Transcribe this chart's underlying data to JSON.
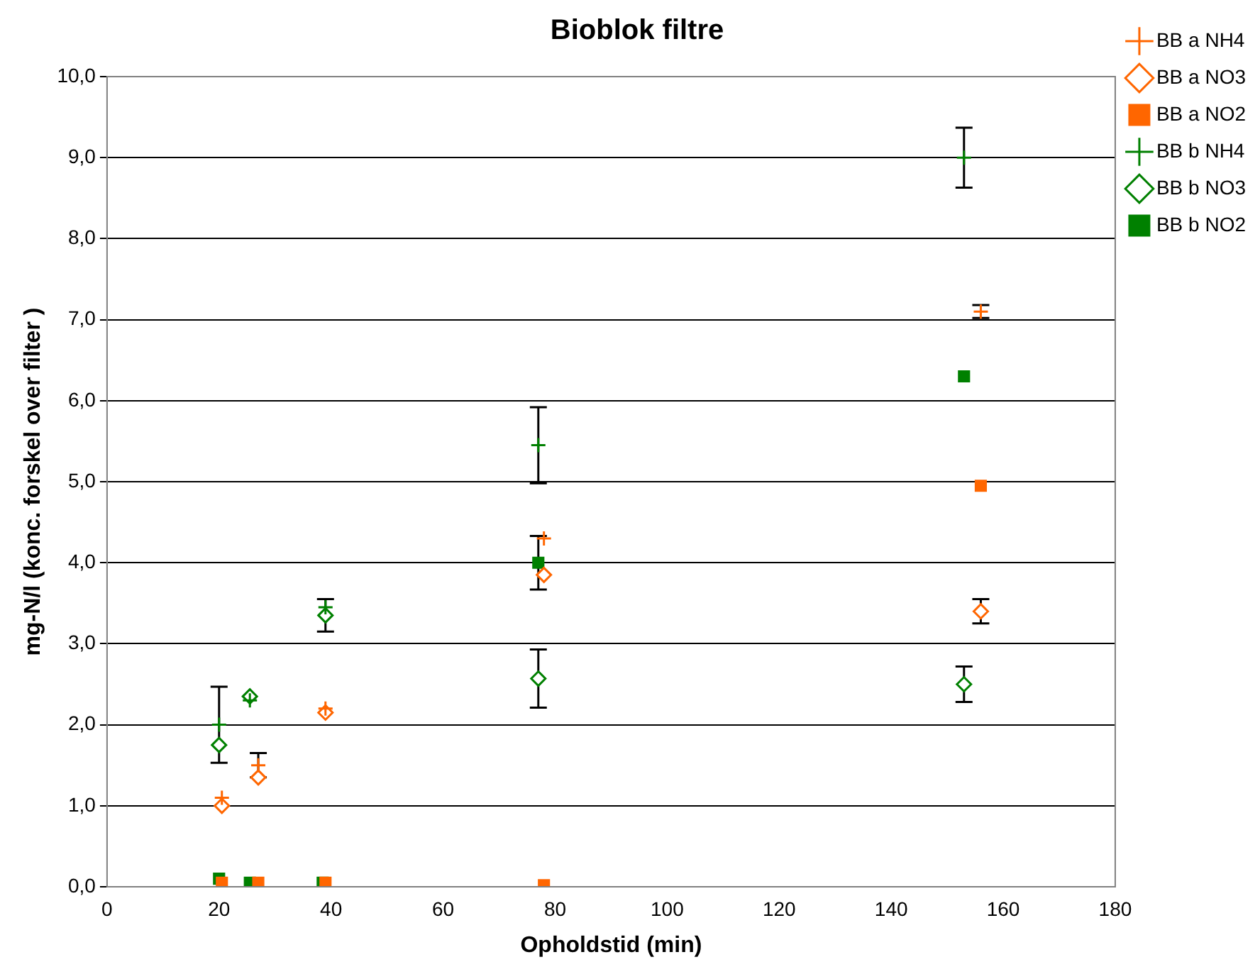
{
  "chart_data": {
    "type": "scatter",
    "title": "Bioblok filtre",
    "xlabel": "Opholdstid (min)",
    "ylabel": "mg-N/l (konc. forskel over filter )",
    "xlim": [
      0,
      180
    ],
    "xticks": [
      0,
      20,
      40,
      60,
      80,
      100,
      120,
      140,
      160,
      180
    ],
    "ylim": [
      0,
      10
    ],
    "yticks": [
      {
        "value": 0,
        "label": "0,0"
      },
      {
        "value": 1,
        "label": "1,0"
      },
      {
        "value": 2,
        "label": "2,0"
      },
      {
        "value": 3,
        "label": "3,0"
      },
      {
        "value": 4,
        "label": "4,0"
      },
      {
        "value": 5,
        "label": "5,0"
      },
      {
        "value": 6,
        "label": "6,0"
      },
      {
        "value": 7,
        "label": "7,0"
      },
      {
        "value": 8,
        "label": "8,0"
      },
      {
        "value": 9,
        "label": "9,0"
      },
      {
        "value": 10,
        "label": "10,0"
      }
    ],
    "grid": "y",
    "legend": "right",
    "series": [
      {
        "name": "BB a NH4",
        "color": "#ff6600",
        "marker": "cross",
        "x": [
          20.5,
          27,
          39,
          78,
          156
        ],
        "values": [
          1.1,
          1.5,
          2.2,
          4.3,
          7.1
        ],
        "errors": [
          null,
          0.15,
          null,
          null,
          0.08
        ]
      },
      {
        "name": "BB a NO3",
        "color": "#ff6600",
        "marker": "diamond",
        "x": [
          20.5,
          27,
          39,
          78,
          156
        ],
        "values": [
          1.0,
          1.35,
          2.15,
          3.85,
          3.4
        ],
        "errors": [
          null,
          null,
          null,
          null,
          0.15
        ]
      },
      {
        "name": "BB a NO2",
        "color": "#ff6600",
        "marker": "square",
        "x": [
          20.5,
          27,
          39,
          78,
          156
        ],
        "values": [
          0.05,
          0.05,
          0.05,
          0.02,
          4.95
        ]
      },
      {
        "name": "BB b NH4",
        "color": "#008000",
        "marker": "cross",
        "x": [
          20,
          25.5,
          39,
          77,
          153
        ],
        "values": [
          2.0,
          2.3,
          3.45,
          5.45,
          9.0
        ],
        "errors": [
          0.47,
          null,
          null,
          0.47,
          0.37
        ]
      },
      {
        "name": "BB b NO3",
        "color": "#008000",
        "marker": "diamond",
        "x": [
          20,
          25.5,
          39,
          77,
          153
        ],
        "values": [
          1.75,
          2.35,
          3.35,
          2.57,
          2.5
        ],
        "errors": [
          null,
          null,
          0.2,
          0.36,
          0.22
        ]
      },
      {
        "name": "BB b NO2",
        "color": "#008000",
        "marker": "square",
        "x": [
          20,
          25.5,
          38.5,
          77,
          153
        ],
        "values": [
          0.1,
          0.05,
          0.05,
          4.0,
          6.3
        ],
        "errors": [
          null,
          null,
          null,
          0.33,
          null
        ]
      }
    ]
  }
}
